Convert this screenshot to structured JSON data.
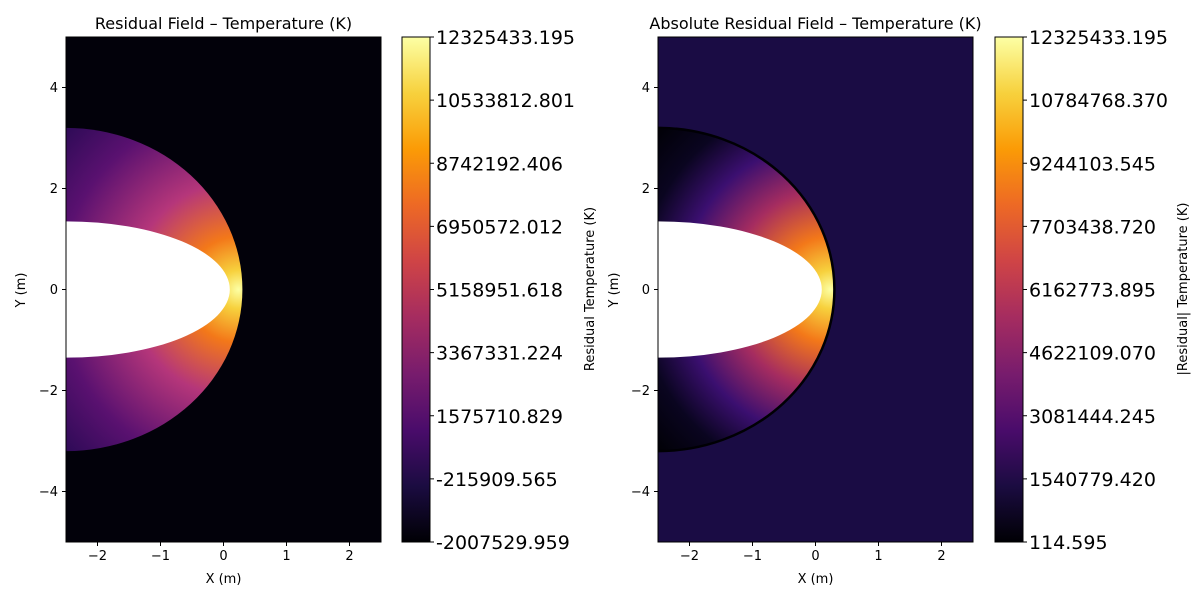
{
  "colors": {
    "cmap": "inferno",
    "stops": [
      "#000004",
      "#1b0c41",
      "#4a0c6b",
      "#781c6d",
      "#a52c60",
      "#cf4446",
      "#ed6925",
      "#fb9b06",
      "#f7d13d",
      "#fcffa4"
    ],
    "background_left": "#02010a",
    "background_right": "#1a0c44",
    "body": "#ffffff"
  },
  "chart_data": [
    {
      "type": "heatmap",
      "title": "Residual Field – Temperature (K)",
      "xlabel": "X (m)",
      "ylabel": "Y (m)",
      "xlim": [
        -2.5,
        2.5
      ],
      "ylim": [
        -5,
        5
      ],
      "xticks": [
        -2,
        -1,
        0,
        1,
        2
      ],
      "xtick_labels": [
        "−2",
        "−1",
        "0",
        "1",
        "2"
      ],
      "yticks": [
        4,
        2,
        0,
        -2,
        -4
      ],
      "ytick_labels": [
        "4",
        "2",
        "0",
        "−2",
        "−4"
      ],
      "colorbar": {
        "label": "Residual Temperature (K)",
        "min": -2007529.959,
        "max": 12325433.195,
        "tick_labels": [
          "12325433.195",
          "10533812.801",
          "8742192.406",
          "6950572.012",
          "5158951.618",
          "3367331.224",
          "1575710.829",
          "-215909.565",
          "-2007529.959"
        ]
      },
      "body": {
        "shape": "half-ellipse",
        "x_center": -2.5,
        "semi_axis_x": 2.6,
        "semi_axis_y": 1.35
      },
      "shock": {
        "nose_x": 0.3,
        "y_at_left_edge": 3.2
      }
    },
    {
      "type": "heatmap",
      "title": "Absolute Residual Field – Temperature (K)",
      "xlabel": "X (m)",
      "ylabel": "Y (m)",
      "xlim": [
        -2.5,
        2.5
      ],
      "ylim": [
        -5,
        5
      ],
      "xticks": [
        -2,
        -1,
        0,
        1,
        2
      ],
      "xtick_labels": [
        "−2",
        "−1",
        "0",
        "1",
        "2"
      ],
      "yticks": [
        4,
        2,
        0,
        -2,
        -4
      ],
      "ytick_labels": [
        "4",
        "2",
        "0",
        "−2",
        "−4"
      ],
      "colorbar": {
        "label": "|Residual| Temperature (K)",
        "min": 114.595,
        "max": 12325433.195,
        "tick_labels": [
          "12325433.195",
          "10784768.370",
          "9244103.545",
          "7703438.720",
          "6162773.895",
          "4622109.070",
          "3081444.245",
          "1540779.420",
          "114.595"
        ]
      },
      "body": {
        "shape": "half-ellipse",
        "x_center": -2.5,
        "semi_axis_x": 2.6,
        "semi_axis_y": 1.35
      },
      "shock": {
        "nose_x": 0.3,
        "y_at_left_edge": 3.2
      }
    }
  ]
}
